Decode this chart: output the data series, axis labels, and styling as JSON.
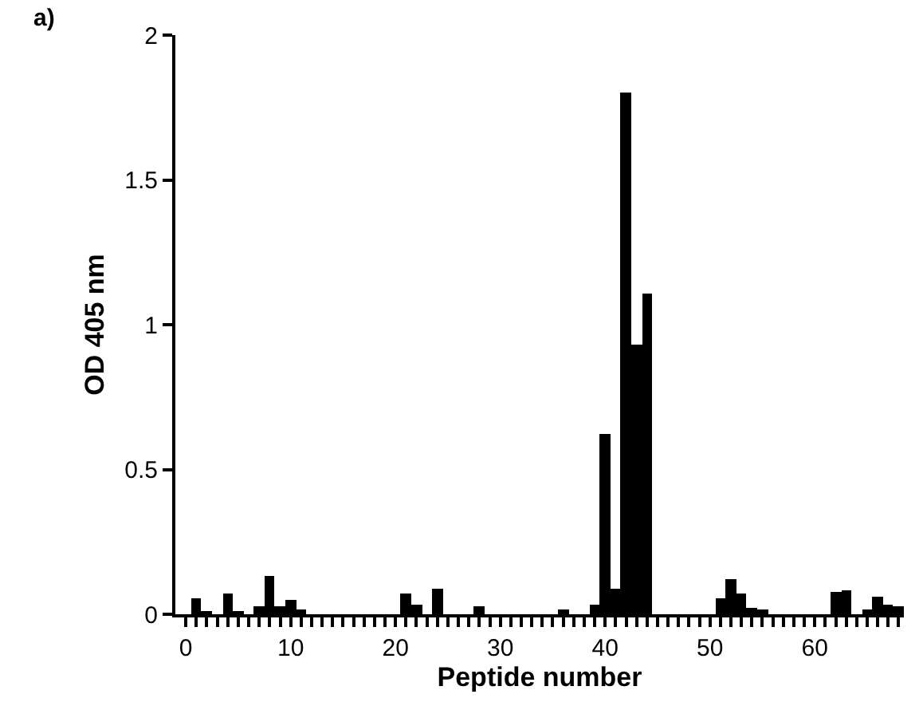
{
  "chart_data": {
    "type": "bar",
    "xlabel": "Peptide number",
    "ylabel": "OD 405 nm",
    "annotations": [
      "a)"
    ],
    "x": [
      1,
      2,
      4,
      5,
      7,
      8,
      9,
      10,
      11,
      21,
      22,
      24,
      28,
      36,
      39,
      40,
      41,
      42,
      43,
      44,
      51,
      52,
      53,
      54,
      55,
      62,
      63,
      65,
      66,
      67,
      68
    ],
    "series": [
      {
        "color": "#000000",
        "values": [
          0.055,
          0.01,
          0.07,
          0.01,
          0.025,
          0.135,
          0.03,
          0.05,
          0.015,
          0.07,
          0.035,
          0.09,
          0.028,
          0.017,
          0.032,
          0.62,
          0.09,
          1.8,
          0.93,
          1.11,
          0.056,
          0.12,
          0.07,
          0.02,
          0.018,
          0.075,
          0.08,
          0.015,
          0.06,
          0.035,
          0.03
        ]
      }
    ],
    "xlim": [
      -1,
      68.5
    ],
    "ylim": [
      0,
      2
    ],
    "xticks": [
      0,
      {
        "value": 1,
        "label": null
      },
      {
        "value": 2,
        "label": null
      },
      {
        "value": 3,
        "label": null
      },
      {
        "value": 4,
        "label": null
      },
      {
        "value": 5,
        "label": null
      },
      {
        "value": 6,
        "label": null
      },
      {
        "value": 7,
        "label": null
      },
      {
        "value": 8,
        "label": null
      },
      {
        "value": 9,
        "label": null
      },
      10,
      {
        "value": 11,
        "label": null
      },
      {
        "value": 12,
        "label": null
      },
      {
        "value": 13,
        "label": null
      },
      {
        "value": 14,
        "label": null
      },
      {
        "value": 15,
        "label": null
      },
      {
        "value": 16,
        "label": null
      },
      {
        "value": 17,
        "label": null
      },
      {
        "value": 18,
        "label": null
      },
      {
        "value": 19,
        "label": null
      },
      20,
      {
        "value": 21,
        "label": null
      },
      {
        "value": 22,
        "label": null
      },
      {
        "value": 23,
        "label": null
      },
      {
        "value": 24,
        "label": null
      },
      {
        "value": 25,
        "label": null
      },
      {
        "value": 26,
        "label": null
      },
      {
        "value": 27,
        "label": null
      },
      {
        "value": 28,
        "label": null
      },
      {
        "value": 29,
        "label": null
      },
      30,
      {
        "value": 31,
        "label": null
      },
      {
        "value": 32,
        "label": null
      },
      {
        "value": 33,
        "label": null
      },
      {
        "value": 34,
        "label": null
      },
      {
        "value": 35,
        "label": null
      },
      {
        "value": 36,
        "label": null
      },
      {
        "value": 37,
        "label": null
      },
      {
        "value": 38,
        "label": null
      },
      {
        "value": 39,
        "label": null
      },
      40,
      {
        "value": 41,
        "label": null
      },
      {
        "value": 42,
        "label": null
      },
      {
        "value": 43,
        "label": null
      },
      {
        "value": 44,
        "label": null
      },
      {
        "value": 45,
        "label": null
      },
      {
        "value": 46,
        "label": null
      },
      {
        "value": 47,
        "label": null
      },
      {
        "value": 48,
        "label": null
      },
      {
        "value": 49,
        "label": null
      },
      50,
      {
        "value": 51,
        "label": null
      },
      {
        "value": 52,
        "label": null
      },
      {
        "value": 53,
        "label": null
      },
      {
        "value": 54,
        "label": null
      },
      {
        "value": 55,
        "label": null
      },
      {
        "value": 56,
        "label": null
      },
      {
        "value": 57,
        "label": null
      },
      {
        "value": 58,
        "label": null
      },
      {
        "value": 59,
        "label": null
      },
      60,
      {
        "value": 61,
        "label": null
      },
      {
        "value": 62,
        "label": null
      },
      {
        "value": 63,
        "label": null
      },
      {
        "value": 64,
        "label": null
      },
      {
        "value": 65,
        "label": null
      },
      {
        "value": 66,
        "label": null
      },
      {
        "value": 67,
        "label": null
      },
      {
        "value": 68,
        "label": null
      }
    ],
    "yticks": [
      0,
      0.5,
      1,
      1.5,
      2
    ]
  }
}
